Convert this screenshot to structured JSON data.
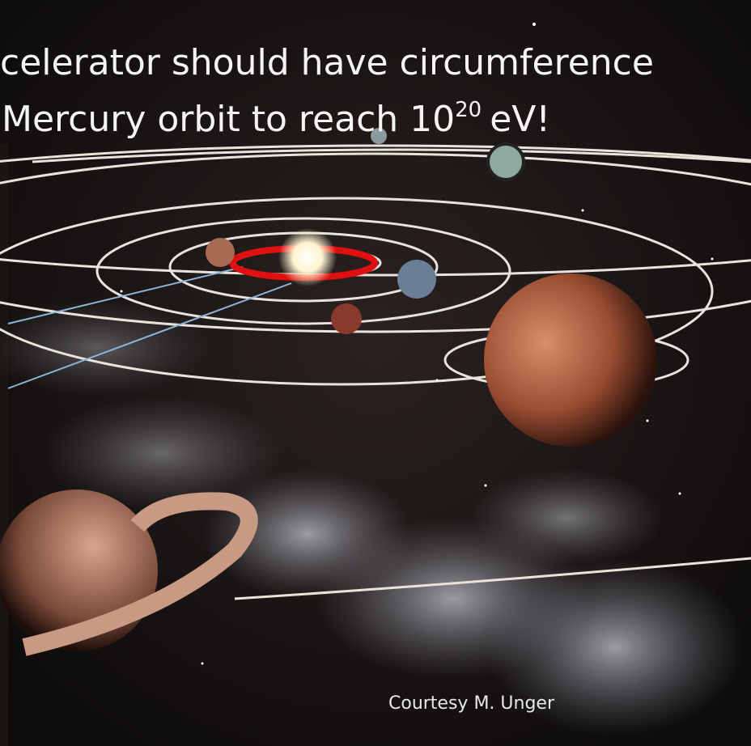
{
  "slide": {
    "title": {
      "line1": "celerator should have circumference",
      "line2": "Mercury orbit to reach 10",
      "superscript": "20",
      "line2_end": "eV!"
    },
    "credit": "Courtesy M. Unger"
  }
}
